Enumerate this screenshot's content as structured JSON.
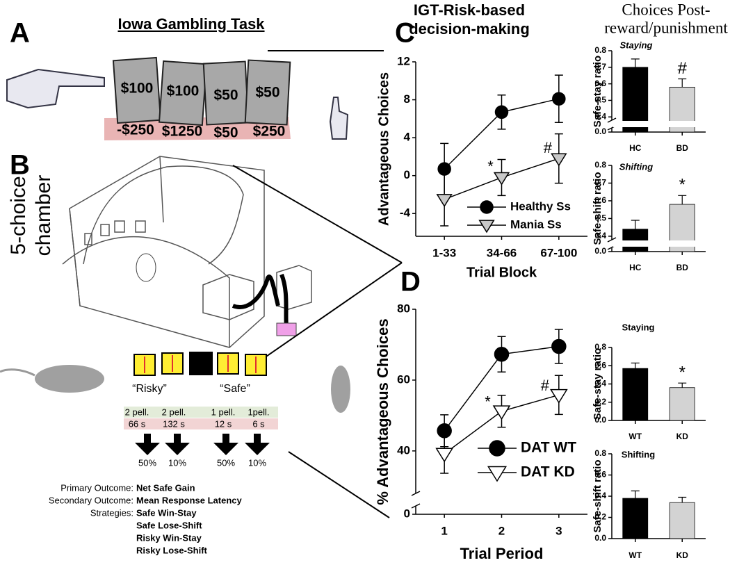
{
  "figure": {
    "panel_labels": [
      "A",
      "B",
      "C",
      "D"
    ],
    "right_title": [
      "Choices Post-",
      "reward/punishment"
    ],
    "panel_a": {
      "title": "Iowa Gambling Task",
      "cards": [
        "$100",
        "$100",
        "$50",
        "$50"
      ],
      "losses": [
        "-$250",
        "$1250",
        "$50",
        "$250"
      ]
    },
    "panel_b": {
      "chamber_label": [
        "5-choice",
        "chamber"
      ],
      "deck_labels": [
        "“Risky”",
        "“Safe”"
      ],
      "rewards": [
        "2 pell.",
        "2 pell.",
        "1 pell.",
        "1pell."
      ],
      "delays": [
        "66 s",
        "132 s",
        "12 s",
        "6 s"
      ],
      "probabilities": [
        "50%",
        "10%",
        "50%",
        "10%"
      ],
      "outcomes": [
        {
          "label": "Primary Outcome:",
          "values": [
            "Net Safe Gain"
          ]
        },
        {
          "label": "Secondary Outcome:",
          "values": [
            "Mean Response Latency"
          ]
        },
        {
          "label": "Strategies:",
          "values": [
            "Safe Win-Stay",
            "Safe Lose-Shift",
            "Risky Win-Stay",
            "Risky Lose-Shift"
          ]
        }
      ]
    }
  },
  "chart_data": [
    {
      "type": "line",
      "title": [
        "IGT-Risk-based",
        "decision-making"
      ],
      "x_label": "Trial Block",
      "y_label": "Advantageous Choices",
      "categories": [
        "1-33",
        "34-66",
        "67-100"
      ],
      "ylim": [
        -6.4,
        12
      ],
      "yticks": [
        -4,
        0,
        4,
        8,
        12
      ],
      "series": [
        {
          "name": "Healthy Ss",
          "color": "#000000",
          "marker": "circle",
          "values": [
            0.7,
            6.7,
            8.1
          ],
          "errors": [
            2.7,
            1.8,
            2.5
          ],
          "annotations": [
            null,
            null,
            null
          ]
        },
        {
          "name": "Mania Ss",
          "color": "#c8c8c8",
          "marker": "triangle-down",
          "values": [
            -2.5,
            -0.2,
            1.8
          ],
          "errors": [
            2.8,
            1.9,
            2.6
          ],
          "annotations": [
            null,
            "*",
            "#"
          ]
        }
      ]
    },
    {
      "type": "bar",
      "title": "Staying",
      "y_label": "Safe-stay ratio",
      "categories": [
        "HC",
        "BD"
      ],
      "values": [
        0.7,
        0.58
      ],
      "errors": [
        0.05,
        0.05
      ],
      "colors": [
        "#000000",
        "#d3d3d3"
      ],
      "annotations": [
        null,
        "#"
      ],
      "ylim": [
        0,
        0.8
      ],
      "axis_break": [
        0.02,
        0.38
      ],
      "yticks": [
        {
          "value": 0,
          "label": "0.0"
        },
        0.4,
        0.5,
        0.6,
        0.7,
        0.8
      ]
    },
    {
      "type": "bar",
      "title": "Shifting",
      "y_label": "Safe-shift ratio",
      "categories": [
        "HC",
        "BD"
      ],
      "values": [
        0.44,
        0.58
      ],
      "errors": [
        0.05,
        0.05
      ],
      "colors": [
        "#000000",
        "#d3d3d3"
      ],
      "annotations": [
        null,
        "*"
      ],
      "ylim": [
        0,
        0.8
      ],
      "axis_break": [
        0.02,
        0.38
      ],
      "yticks": [
        {
          "value": 0,
          "label": "0.0"
        },
        0.4,
        0.5,
        0.6,
        0.7,
        0.8
      ]
    },
    {
      "type": "line",
      "x_label": "Trial Period",
      "y_label": "% Advantageous Choices",
      "categories": [
        "1",
        "2",
        "3"
      ],
      "ylim": [
        0,
        80
      ],
      "axis_break": [
        2,
        28
      ],
      "yticks": [
        0,
        40,
        60,
        80
      ],
      "series": [
        {
          "name": "DAT WT",
          "color": "#000000",
          "marker": "circle",
          "values": [
            45.7,
            67.3,
            69.5
          ],
          "errors": [
            4.5,
            5,
            4.8
          ],
          "annotations": [
            null,
            null,
            null
          ]
        },
        {
          "name": "DAT KD",
          "color": "#ffffff",
          "marker": "triangle-down",
          "values": [
            39.2,
            51.2,
            55.8
          ],
          "errors": [
            5.5,
            4.5,
            5.5
          ],
          "annotations": [
            null,
            "*",
            "#"
          ]
        }
      ]
    },
    {
      "type": "bar",
      "title": "Staying",
      "y_label": "Safe-stay ratio",
      "categories": [
        "WT",
        "KD"
      ],
      "values": [
        0.57,
        0.36
      ],
      "errors": [
        0.06,
        0.05
      ],
      "colors": [
        "#000000",
        "#d3d3d3"
      ],
      "annotations": [
        null,
        "*"
      ],
      "ylim": [
        0,
        0.8
      ],
      "yticks": [
        {
          "value": 0,
          "label": "0.0"
        },
        0.2,
        0.4,
        0.6,
        0.8
      ]
    },
    {
      "type": "bar",
      "title": "Shifting",
      "y_label": "Safe-shift ratio",
      "categories": [
        "WT",
        "KD"
      ],
      "values": [
        0.38,
        0.34
      ],
      "errors": [
        0.07,
        0.05
      ],
      "colors": [
        "#000000",
        "#d3d3d3"
      ],
      "annotations": [
        null,
        null
      ],
      "ylim": [
        0,
        0.8
      ],
      "yticks": [
        {
          "value": 0,
          "label": "0.0"
        },
        0.2,
        0.4,
        0.6,
        0.8
      ]
    }
  ]
}
